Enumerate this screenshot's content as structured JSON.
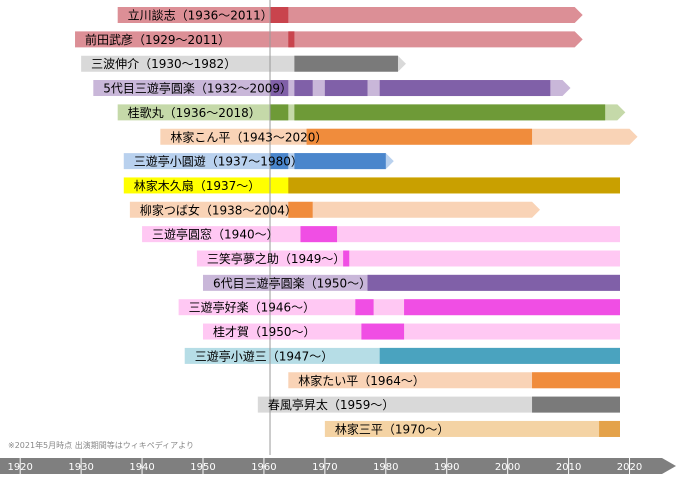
{
  "footnote": "※2021年5月時点 出演期間等はウィキペディアより",
  "chart_data": {
    "type": "bar",
    "title": "",
    "xlabel": "",
    "ylabel": "",
    "xlim": [
      1918,
      2025
    ],
    "x_ticks": [
      "1920",
      "1930",
      "1940",
      "1950",
      "1960",
      "1970",
      "1980",
      "1990",
      "2000",
      "2010",
      "2020"
    ],
    "reference_line_year": 1961,
    "series": [
      {
        "label": "立川談志（1936～2011）",
        "light": "#dc8f96",
        "dark": "#c9444d",
        "life": [
          1936,
          2011
        ],
        "arrow": true,
        "segments": [
          [
            1961,
            1964
          ]
        ]
      },
      {
        "label": "前田武彦（1929～2011）",
        "light": "#dc8f96",
        "dark": "#c9444d",
        "life": [
          1929,
          2011
        ],
        "arrow": true,
        "segments": [
          [
            1964,
            1965
          ]
        ]
      },
      {
        "label": "三波伸介（1930～1982）",
        "light": "#d9d9d9",
        "dark": "#7a7a7a",
        "life": [
          1930,
          1982
        ],
        "arrow": true,
        "segments": [
          [
            1965,
            1982
          ]
        ]
      },
      {
        "label": "5代目三遊亭圓楽（1932～2009）",
        "light": "#c9b7d9",
        "dark": "#8060a8",
        "life": [
          1932,
          2009
        ],
        "arrow": true,
        "segments": [
          [
            1961,
            1964
          ],
          [
            1965,
            1968
          ],
          [
            1970,
            1977
          ],
          [
            1979,
            2007
          ]
        ]
      },
      {
        "label": "桂歌丸（1936～2018）",
        "light": "#c5d9a9",
        "dark": "#6e9a37",
        "life": [
          1936,
          2018
        ],
        "arrow": true,
        "segments": [
          [
            1961,
            1964
          ],
          [
            1965,
            2016
          ]
        ]
      },
      {
        "label": "林家こん平（1943～2020）",
        "light": "#f9d3b6",
        "dark": "#f08c3c",
        "life": [
          1943,
          2020
        ],
        "arrow": true,
        "segments": [
          [
            1967,
            2004
          ]
        ]
      },
      {
        "label": "三遊亭小圓遊（1937～1980）",
        "light": "#b9d1ee",
        "dark": "#4a86cc",
        "life": [
          1937,
          1980
        ],
        "arrow": true,
        "segments": [
          [
            1961,
            1964
          ],
          [
            1965,
            1980
          ]
        ]
      },
      {
        "label": "林家木久扇（1937～）",
        "light": "#ffff00",
        "dark": "#c9a000",
        "life": [
          1937,
          2022
        ],
        "arrow": false,
        "segments": [
          [
            1964,
            2022
          ]
        ]
      },
      {
        "label": "柳家つば女（1938～2004）",
        "light": "#f9d3b6",
        "dark": "#f08c3c",
        "life": [
          1938,
          2004
        ],
        "arrow": true,
        "segments": [
          [
            1964,
            1968
          ]
        ]
      },
      {
        "label": "三遊亭圓窓（1940～）",
        "light": "#ffc8f3",
        "dark": "#f04ee4",
        "life": [
          1940,
          2022
        ],
        "arrow": false,
        "segments": [
          [
            1966,
            1972
          ]
        ]
      },
      {
        "label": "三笑亭夢之助（1949～）",
        "light": "#ffc8f3",
        "dark": "#f04ee4",
        "life": [
          1949,
          2022
        ],
        "arrow": false,
        "segments": [
          [
            1973,
            1974
          ]
        ]
      },
      {
        "label": "6代目三遊亭圓楽（1950～）",
        "light": "#c9b7d9",
        "dark": "#8060a8",
        "life": [
          1950,
          2022
        ],
        "arrow": false,
        "segments": [
          [
            1977,
            2022
          ]
        ]
      },
      {
        "label": "三遊亭好楽（1946～）",
        "light": "#ffc8f3",
        "dark": "#f04ee4",
        "life": [
          1946,
          2022
        ],
        "arrow": false,
        "segments": [
          [
            1975,
            1978
          ],
          [
            1983,
            2022
          ]
        ]
      },
      {
        "label": "桂才賀（1950～）",
        "light": "#ffc8f3",
        "dark": "#f04ee4",
        "life": [
          1950,
          2022
        ],
        "arrow": false,
        "segments": [
          [
            1976,
            1983
          ]
        ]
      },
      {
        "label": "三遊亭小遊三（1947～）",
        "light": "#b6dde6",
        "dark": "#4aa3bf",
        "life": [
          1947,
          2022
        ],
        "arrow": false,
        "segments": [
          [
            1979,
            2022
          ]
        ]
      },
      {
        "label": "林家たい平（1964～）",
        "light": "#f9d3b6",
        "dark": "#f08c3c",
        "life": [
          1964,
          2022
        ],
        "arrow": false,
        "segments": [
          [
            2004,
            2022
          ]
        ]
      },
      {
        "label": "春風亭昇太（1959～）",
        "light": "#d9d9d9",
        "dark": "#7a7a7a",
        "life": [
          1959,
          2022
        ],
        "arrow": false,
        "segments": [
          [
            2004,
            2022
          ]
        ]
      },
      {
        "label": "林家三平（1970～）",
        "light": "#f4d3a4",
        "dark": "#e4a24a",
        "life": [
          1970,
          2022
        ],
        "arrow": false,
        "segments": [
          [
            2015,
            2021
          ]
        ]
      }
    ]
  }
}
